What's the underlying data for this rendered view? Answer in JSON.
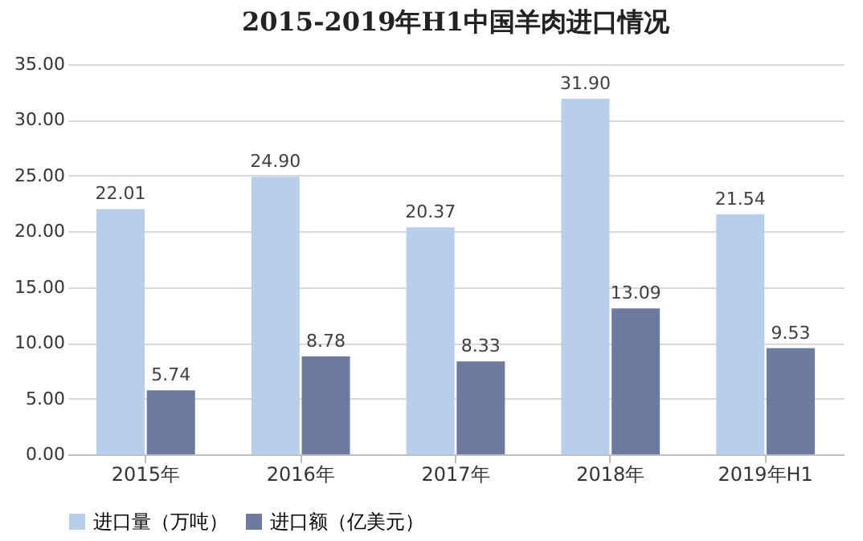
{
  "chart_data": {
    "type": "bar",
    "title": "2015-2019年H1中国羊肉进口情况",
    "categories": [
      "2015年",
      "2016年",
      "2017年",
      "2018年",
      "2019年H1"
    ],
    "series": [
      {
        "name": "进口量（万吨）",
        "color": "#b7cfea",
        "values": [
          22.01,
          24.9,
          20.37,
          31.9,
          21.54
        ],
        "value_labels": [
          "22.01",
          "24.90",
          "20.37",
          "31.90",
          "21.54"
        ]
      },
      {
        "name": "进口额（亿美元）",
        "color": "#6b7a9e",
        "values": [
          5.74,
          8.78,
          8.33,
          13.09,
          9.53
        ],
        "value_labels": [
          "5.74",
          "8.78",
          "8.33",
          "13.09",
          "9.53"
        ]
      }
    ],
    "ylim": [
      0,
      35
    ],
    "yticks": [
      {
        "value": 0,
        "label": "0.00"
      },
      {
        "value": 5,
        "label": "5.00"
      },
      {
        "value": 10,
        "label": "10.00"
      },
      {
        "value": 15,
        "label": "15.00"
      },
      {
        "value": 20,
        "label": "20.00"
      },
      {
        "value": 25,
        "label": "25.00"
      },
      {
        "value": 30,
        "label": "30.00"
      },
      {
        "value": 35,
        "label": "35.00"
      }
    ],
    "grid": "y",
    "legend": "bottom"
  }
}
